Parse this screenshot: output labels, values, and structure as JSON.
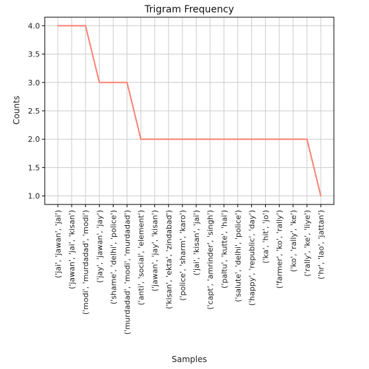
{
  "chart_data": {
    "type": "line",
    "title": "Trigram Frequency",
    "xlabel": "Samples",
    "ylabel": "Counts",
    "categories": [
      "('jai', 'jawan', 'jai')",
      "('jawan', 'jai', 'kisan')",
      "('modi', 'murdadad', 'modi')",
      "('jay', 'jawan', 'jay')",
      "('shame', 'delhi', 'police')",
      "('murdadad', 'modi', 'murdadad')",
      "('anti', 'social', 'element')",
      "('jawan', 'jay', 'kisan')",
      "('kisan', 'ekta', 'zindabad')",
      "('police', 'sharm', 'karo')",
      "('jai', 'kisan', 'jai')",
      "('capt', 'amrinder', 'singh')",
      "('paltu', 'kutte', 'hai')",
      "('salute', 'delhi', 'police')",
      "('happy', 'republic', 'day')",
      "('ka', 'hit', 'jo')",
      "('farmer', 'ko', 'rally')",
      "('ko', 'rally', 'ke')",
      "('rally', 'ke', 'liye')",
      "('hr', 'lao', 'jattan')"
    ],
    "values": [
      4,
      4,
      4,
      3,
      3,
      3,
      2,
      2,
      2,
      2,
      2,
      2,
      2,
      2,
      2,
      2,
      2,
      2,
      2,
      1
    ],
    "yticks": [
      "1.0",
      "1.5",
      "2.0",
      "2.5",
      "3.0",
      "3.5",
      "4.0"
    ],
    "ylim": [
      0.85,
      4.15
    ],
    "grid": true,
    "colors": {
      "line": "#fa8072",
      "grid": "#cccccc",
      "axis": "#000000"
    }
  }
}
